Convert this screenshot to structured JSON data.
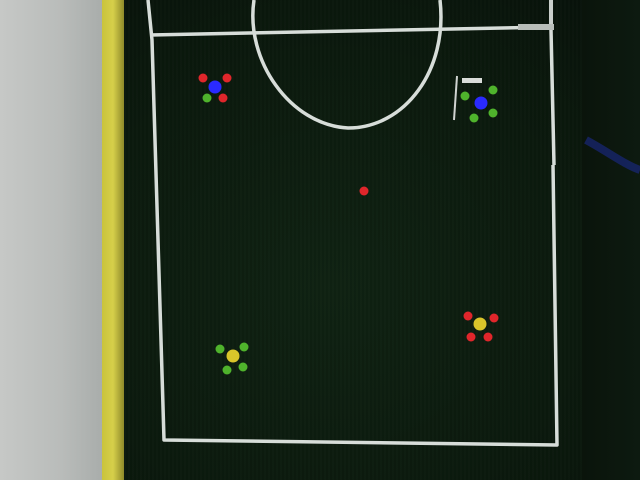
{
  "scene": {
    "colors": {
      "wall": "#bcbfbd",
      "tape": "#cfc842",
      "turf": "#0c1a0e",
      "line": "#d7ddd9",
      "ball": "#e0262b",
      "blue_team_center": "#2a2aff",
      "yellow_team_center": "#d9c52a",
      "dot_red": "#e0262b",
      "dot_green": "#4fb32c"
    },
    "robots": [
      {
        "id": "robot-blue-red-markers",
        "center": "blue",
        "markers": [
          "red",
          "red",
          "green",
          "red"
        ]
      },
      {
        "id": "robot-blue-green-markers",
        "center": "blue",
        "markers": [
          "green",
          "green",
          "green",
          "green"
        ]
      },
      {
        "id": "robot-yellow-red-markers",
        "center": "yellow",
        "markers": [
          "red",
          "red",
          "red",
          "red"
        ]
      },
      {
        "id": "robot-yellow-green-markers",
        "center": "yellow",
        "markers": [
          "green",
          "green",
          "green",
          "green"
        ]
      }
    ],
    "ball": {
      "color": "orange-red"
    }
  }
}
